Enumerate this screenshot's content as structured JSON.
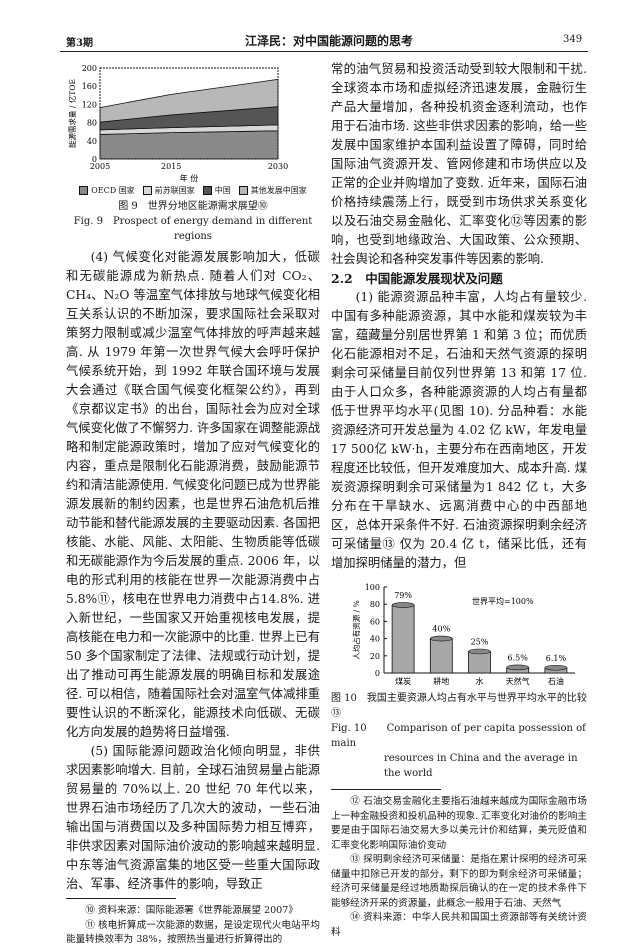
{
  "header": {
    "issue": "第3期",
    "title": "江泽民：对中国能源问题的思考",
    "page_number": "349"
  },
  "chart_data": [
    {
      "type": "area",
      "stacked": true,
      "x": [
        2005,
        2015,
        2030
      ],
      "xlabel": "年 份",
      "ylabel": "能源需求量 / 亿TOE",
      "ylim": [
        0,
        200
      ],
      "yticks": [
        0,
        40,
        80,
        120,
        160,
        200
      ],
      "series": [
        {
          "name": "OECD 国家",
          "values": [
            54,
            58,
            62
          ]
        },
        {
          "name": "前苏联国家",
          "values": [
            10,
            11,
            13
          ]
        },
        {
          "name": "中国",
          "values": [
            17,
            28,
            40
          ]
        },
        {
          "name": "其他发展中国家",
          "values": [
            32,
            45,
            60
          ]
        }
      ],
      "legend": "bottom",
      "colors": [
        "#8a8a8a",
        "#d8d8d8",
        "#555555",
        "#b8b8b8"
      ]
    },
    {
      "type": "bar",
      "categories": [
        "煤炭",
        "耕地",
        "水",
        "天然气",
        "石油"
      ],
      "values": [
        79,
        40,
        25,
        6.5,
        6.1
      ],
      "data_labels": [
        "79%",
        "40%",
        "25%",
        "6.5%",
        "6.1%"
      ],
      "ylabel": "人均占有资源 / %",
      "ylim": [
        0,
        100
      ],
      "yticks": [
        0,
        20,
        40,
        60,
        80,
        100
      ],
      "annotation": "世界平均=100%",
      "bar_color": "#a8a8a8"
    }
  ],
  "fig9": {
    "caption_cn": "图 9　世界分地区能源需求展望⑩",
    "caption_en": "Fig. 9　Prospect of energy demand in different regions"
  },
  "fig10": {
    "caption_cn": "图 10　我国主要资源人均占有水平与世界平均水平的比较⑬",
    "caption_en_1": "Fig. 10　　Comparison of per capita possession of main",
    "caption_en_2": "resources in China and the average in the world"
  },
  "left": {
    "p4": "(4) 气候变化对能源发展影响加大，低碳和无碳能源成为新热点. 随着人们对 CO₂、CH₄、N₂O 等温室气体排放与地球气候变化相互关系认识的不断加深，要求国际社会采取对策努力限制或减少温室气体排放的呼声越来越高. 从 1979 年第一次世界气候大会呼吁保护气候系统开始，到 1992 年联合国环境与发展大会通过《联合国气候变化框架公约》，再到《京都议定书》的出台，国际社会为应对全球气候变化做了不懈努力. 许多国家在调整能源战略和制定能源政策时，增加了应对气候变化的内容，重点是限制化石能源消费，鼓励能源节约和清洁能源使用. 气候变化问题已成为世界能源发展新的制约因素，也是世界石油危机后推动节能和替代能源发展的主要驱动因素. 各国把核能、水能、风能、太阳能、生物质能等低碳和无碳能源作为今后发展的重点. 2006 年，以电的形式利用的核能在世界一次能源消费中占 5.8%⑪，核电在世界电力消费中占14.8%. 进入新世纪，一些国家又开始重视核电发展，提高核能在电力和一次能源中的比重. 世界上已有 50 多个国家制定了法律、法规或行动计划，提出了推动可再生能源发展的明确目标和发展途径. 可以相信，随着国际社会对温室气体减排重要性认识的不断深化，能源技术向低碳、无碳化方向发展的趋势将日益增强.",
    "p5": "(5) 国际能源问题政治化倾向明显，非供求因素影响增大. 目前，全球石油贸易量占能源贸易量的 70%以上. 20 世纪 70 年代以来，世界石油市场经历了几次大的波动，一些石油输出国与消费国以及多种国际势力相互博弈，非供求因素对国际油价波动的影响越来越明显. 中东等油气资源富集的地区受一些重大国际政治、军事、经济事件的影响，导致正",
    "fn10": "⑩ 资料来源：国际能源署《世界能源展望 2007》",
    "fn11": "⑪ 核电折算成一次能源的数据，是设定现代火电站平均能量转换效率为 38%，按照热当量进行折算得出的"
  },
  "right": {
    "p_cont": "常的油气贸易和投资活动受到较大限制和干扰. 全球资本市场和虚拟经济迅速发展，金融衍生产品大量增加，各种投机资金逐利流动，也作用于石油市场. 这些非供求因素的影响，给一些发展中国家维护本国利益设置了障碍，同时给国际油气资源开发、管网修建和市场供应以及正常的企业并购增加了变数. 近年来，国际石油价格持续震荡上行，既受到市场供求关系变化以及石油交易金融化、汇率变化⑫等因素的影响，也受到地缘政治、大国政策、公众预期、社会舆论和各种突发事件等因素的影响.",
    "heading": "2.2　中国能源发展现状及问题",
    "p1": "(1) 能源资源品种丰富，人均占有量较少. 中国有多种能源资源，其中水能和煤炭较为丰富，蕴藏量分别居世界第 1 和第 3 位；而优质化石能源相对不足，石油和天然气资源的探明剩余可采储量目前仅列世界第 13 和第 17 位. 由于人口众多，各种能源资源的人均占有量都低于世界平均水平(见图 10). 分品种看：水能资源经济可开发总量为 4.02 亿 kW，年发电量17 500亿 kW·h，主要分布在西南地区，开发程度还比较低，但开发难度加大、成本升高. 煤炭资源探明剩余可采储量为1 842 亿 t，大多分布在干旱缺水、远离消费中心的中西部地区，总体开采条件不好. 石油资源探明剩余经济可采储量⑬ 仅为 20.4 亿 t，储采比低，还有增加探明储量的潜力，但",
    "fn12": "⑫ 石油交易金融化主要指石油越来越成为国际金融市场上一种金融投资和投机品种的现象. 汇率变化对油价的影响主要是由于国际石油交易大多以美元计价和结算，美元贬值和汇率变化影响国际油价变动",
    "fn13": "⑬ 探明剩余经济可采储量：是指在累计探明的经济可采储量中扣除已开发的部分，剩下的即为剩余经济可采储量；经济可采储量是经过地质勘探后确认的在一定的技术条件下能够经济开采的资源量，此概念一般用于石油、天然气",
    "fn14": "⑭ 资料来源：中华人民共和国国土资源部等有关统计资料"
  }
}
